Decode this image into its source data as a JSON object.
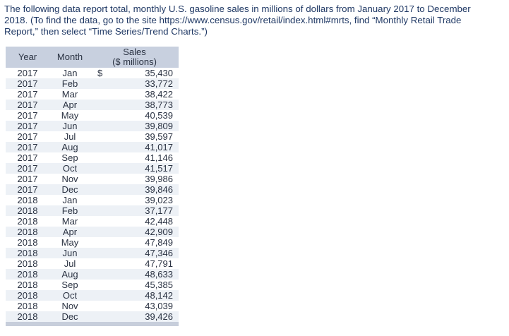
{
  "intro": {
    "lines": [
      "The following data report total, monthly U.S. gasoline sales in millions of dollars from January 2017 to December",
      "2018. (To find the data, go to the site https://www.census.gov/retail/index.html#mrts, find “Monthly Retail Trade",
      "Report,” then select “Time Series/Trend Charts.”)"
    ]
  },
  "table": {
    "header": {
      "year_label": "Year",
      "month_label": "Month",
      "sales_line1": "Sales",
      "sales_line2": "($ millions)"
    },
    "rows": [
      {
        "year": "2017",
        "month": "Jan",
        "currency": "$",
        "sales": "35,430"
      },
      {
        "year": "2017",
        "month": "Feb",
        "sales": "33,772"
      },
      {
        "year": "2017",
        "month": "Mar",
        "sales": "38,422"
      },
      {
        "year": "2017",
        "month": "Apr",
        "sales": "38,773"
      },
      {
        "year": "2017",
        "month": "May",
        "sales": "40,539"
      },
      {
        "year": "2017",
        "month": "Jun",
        "sales": "39,809"
      },
      {
        "year": "2017",
        "month": "Jul",
        "sales": "39,597"
      },
      {
        "year": "2017",
        "month": "Aug",
        "sales": "41,017"
      },
      {
        "year": "2017",
        "month": "Sep",
        "sales": "41,146"
      },
      {
        "year": "2017",
        "month": "Oct",
        "sales": "41,517"
      },
      {
        "year": "2017",
        "month": "Nov",
        "sales": "39,986"
      },
      {
        "year": "2017",
        "month": "Dec",
        "sales": "39,846"
      },
      {
        "year": "2018",
        "month": "Jan",
        "sales": "39,023"
      },
      {
        "year": "2018",
        "month": "Feb",
        "sales": "37,177"
      },
      {
        "year": "2018",
        "month": "Mar",
        "sales": "42,448"
      },
      {
        "year": "2018",
        "month": "Apr",
        "sales": "42,909"
      },
      {
        "year": "2018",
        "month": "May",
        "sales": "47,849"
      },
      {
        "year": "2018",
        "month": "Jun",
        "sales": "47,346"
      },
      {
        "year": "2018",
        "month": "Jul",
        "sales": "47,791"
      },
      {
        "year": "2018",
        "month": "Aug",
        "sales": "48,633"
      },
      {
        "year": "2018",
        "month": "Sep",
        "sales": "45,385"
      },
      {
        "year": "2018",
        "month": "Oct",
        "sales": "48,142"
      },
      {
        "year": "2018",
        "month": "Nov",
        "sales": "43,039"
      },
      {
        "year": "2018",
        "month": "Dec",
        "sales": "39,426"
      }
    ]
  },
  "colors": {
    "intro_text": "#1F3864",
    "table_text": "#2A3242",
    "header_bg": "#C8D0DF",
    "stripe_bg": "#EDF1F6",
    "footer_bar": "#C7CEDB",
    "page_bg": "#FFFFFF"
  }
}
